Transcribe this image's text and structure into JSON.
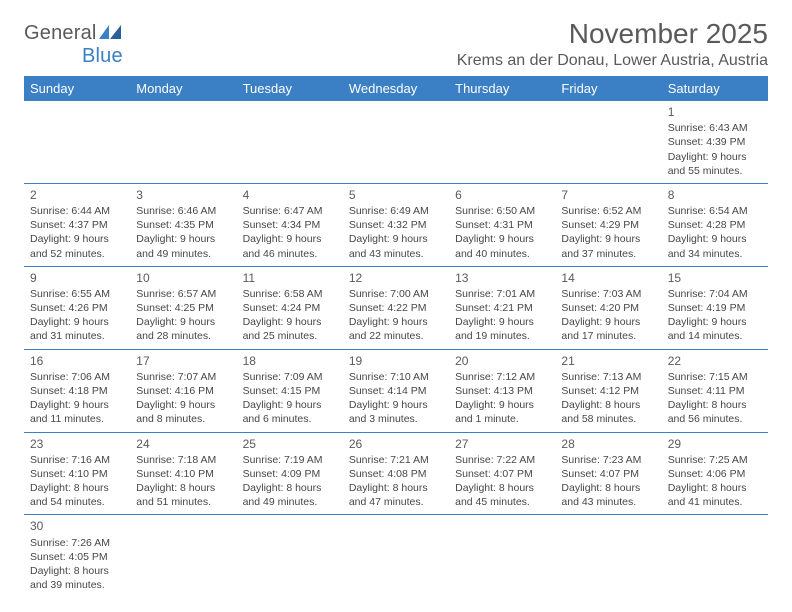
{
  "header": {
    "logo_general": "General",
    "logo_blue": "Blue",
    "month_title": "November 2025",
    "location": "Krems an der Donau, Lower Austria, Austria"
  },
  "calendar": {
    "day_headers": [
      "Sunday",
      "Monday",
      "Tuesday",
      "Wednesday",
      "Thursday",
      "Friday",
      "Saturday"
    ],
    "colors": {
      "header_bg": "#3b7fc4",
      "header_fg": "#ffffff",
      "row_border": "#3b7fc4",
      "text": "#474747"
    },
    "weeks": [
      [
        null,
        null,
        null,
        null,
        null,
        null,
        {
          "n": "1",
          "sunrise": "Sunrise: 6:43 AM",
          "sunset": "Sunset: 4:39 PM",
          "day1": "Daylight: 9 hours",
          "day2": "and 55 minutes."
        }
      ],
      [
        {
          "n": "2",
          "sunrise": "Sunrise: 6:44 AM",
          "sunset": "Sunset: 4:37 PM",
          "day1": "Daylight: 9 hours",
          "day2": "and 52 minutes."
        },
        {
          "n": "3",
          "sunrise": "Sunrise: 6:46 AM",
          "sunset": "Sunset: 4:35 PM",
          "day1": "Daylight: 9 hours",
          "day2": "and 49 minutes."
        },
        {
          "n": "4",
          "sunrise": "Sunrise: 6:47 AM",
          "sunset": "Sunset: 4:34 PM",
          "day1": "Daylight: 9 hours",
          "day2": "and 46 minutes."
        },
        {
          "n": "5",
          "sunrise": "Sunrise: 6:49 AM",
          "sunset": "Sunset: 4:32 PM",
          "day1": "Daylight: 9 hours",
          "day2": "and 43 minutes."
        },
        {
          "n": "6",
          "sunrise": "Sunrise: 6:50 AM",
          "sunset": "Sunset: 4:31 PM",
          "day1": "Daylight: 9 hours",
          "day2": "and 40 minutes."
        },
        {
          "n": "7",
          "sunrise": "Sunrise: 6:52 AM",
          "sunset": "Sunset: 4:29 PM",
          "day1": "Daylight: 9 hours",
          "day2": "and 37 minutes."
        },
        {
          "n": "8",
          "sunrise": "Sunrise: 6:54 AM",
          "sunset": "Sunset: 4:28 PM",
          "day1": "Daylight: 9 hours",
          "day2": "and 34 minutes."
        }
      ],
      [
        {
          "n": "9",
          "sunrise": "Sunrise: 6:55 AM",
          "sunset": "Sunset: 4:26 PM",
          "day1": "Daylight: 9 hours",
          "day2": "and 31 minutes."
        },
        {
          "n": "10",
          "sunrise": "Sunrise: 6:57 AM",
          "sunset": "Sunset: 4:25 PM",
          "day1": "Daylight: 9 hours",
          "day2": "and 28 minutes."
        },
        {
          "n": "11",
          "sunrise": "Sunrise: 6:58 AM",
          "sunset": "Sunset: 4:24 PM",
          "day1": "Daylight: 9 hours",
          "day2": "and 25 minutes."
        },
        {
          "n": "12",
          "sunrise": "Sunrise: 7:00 AM",
          "sunset": "Sunset: 4:22 PM",
          "day1": "Daylight: 9 hours",
          "day2": "and 22 minutes."
        },
        {
          "n": "13",
          "sunrise": "Sunrise: 7:01 AM",
          "sunset": "Sunset: 4:21 PM",
          "day1": "Daylight: 9 hours",
          "day2": "and 19 minutes."
        },
        {
          "n": "14",
          "sunrise": "Sunrise: 7:03 AM",
          "sunset": "Sunset: 4:20 PM",
          "day1": "Daylight: 9 hours",
          "day2": "and 17 minutes."
        },
        {
          "n": "15",
          "sunrise": "Sunrise: 7:04 AM",
          "sunset": "Sunset: 4:19 PM",
          "day1": "Daylight: 9 hours",
          "day2": "and 14 minutes."
        }
      ],
      [
        {
          "n": "16",
          "sunrise": "Sunrise: 7:06 AM",
          "sunset": "Sunset: 4:18 PM",
          "day1": "Daylight: 9 hours",
          "day2": "and 11 minutes."
        },
        {
          "n": "17",
          "sunrise": "Sunrise: 7:07 AM",
          "sunset": "Sunset: 4:16 PM",
          "day1": "Daylight: 9 hours",
          "day2": "and 8 minutes."
        },
        {
          "n": "18",
          "sunrise": "Sunrise: 7:09 AM",
          "sunset": "Sunset: 4:15 PM",
          "day1": "Daylight: 9 hours",
          "day2": "and 6 minutes."
        },
        {
          "n": "19",
          "sunrise": "Sunrise: 7:10 AM",
          "sunset": "Sunset: 4:14 PM",
          "day1": "Daylight: 9 hours",
          "day2": "and 3 minutes."
        },
        {
          "n": "20",
          "sunrise": "Sunrise: 7:12 AM",
          "sunset": "Sunset: 4:13 PM",
          "day1": "Daylight: 9 hours",
          "day2": "and 1 minute."
        },
        {
          "n": "21",
          "sunrise": "Sunrise: 7:13 AM",
          "sunset": "Sunset: 4:12 PM",
          "day1": "Daylight: 8 hours",
          "day2": "and 58 minutes."
        },
        {
          "n": "22",
          "sunrise": "Sunrise: 7:15 AM",
          "sunset": "Sunset: 4:11 PM",
          "day1": "Daylight: 8 hours",
          "day2": "and 56 minutes."
        }
      ],
      [
        {
          "n": "23",
          "sunrise": "Sunrise: 7:16 AM",
          "sunset": "Sunset: 4:10 PM",
          "day1": "Daylight: 8 hours",
          "day2": "and 54 minutes."
        },
        {
          "n": "24",
          "sunrise": "Sunrise: 7:18 AM",
          "sunset": "Sunset: 4:10 PM",
          "day1": "Daylight: 8 hours",
          "day2": "and 51 minutes."
        },
        {
          "n": "25",
          "sunrise": "Sunrise: 7:19 AM",
          "sunset": "Sunset: 4:09 PM",
          "day1": "Daylight: 8 hours",
          "day2": "and 49 minutes."
        },
        {
          "n": "26",
          "sunrise": "Sunrise: 7:21 AM",
          "sunset": "Sunset: 4:08 PM",
          "day1": "Daylight: 8 hours",
          "day2": "and 47 minutes."
        },
        {
          "n": "27",
          "sunrise": "Sunrise: 7:22 AM",
          "sunset": "Sunset: 4:07 PM",
          "day1": "Daylight: 8 hours",
          "day2": "and 45 minutes."
        },
        {
          "n": "28",
          "sunrise": "Sunrise: 7:23 AM",
          "sunset": "Sunset: 4:07 PM",
          "day1": "Daylight: 8 hours",
          "day2": "and 43 minutes."
        },
        {
          "n": "29",
          "sunrise": "Sunrise: 7:25 AM",
          "sunset": "Sunset: 4:06 PM",
          "day1": "Daylight: 8 hours",
          "day2": "and 41 minutes."
        }
      ],
      [
        {
          "n": "30",
          "sunrise": "Sunrise: 7:26 AM",
          "sunset": "Sunset: 4:05 PM",
          "day1": "Daylight: 8 hours",
          "day2": "and 39 minutes."
        },
        null,
        null,
        null,
        null,
        null,
        null
      ]
    ]
  }
}
